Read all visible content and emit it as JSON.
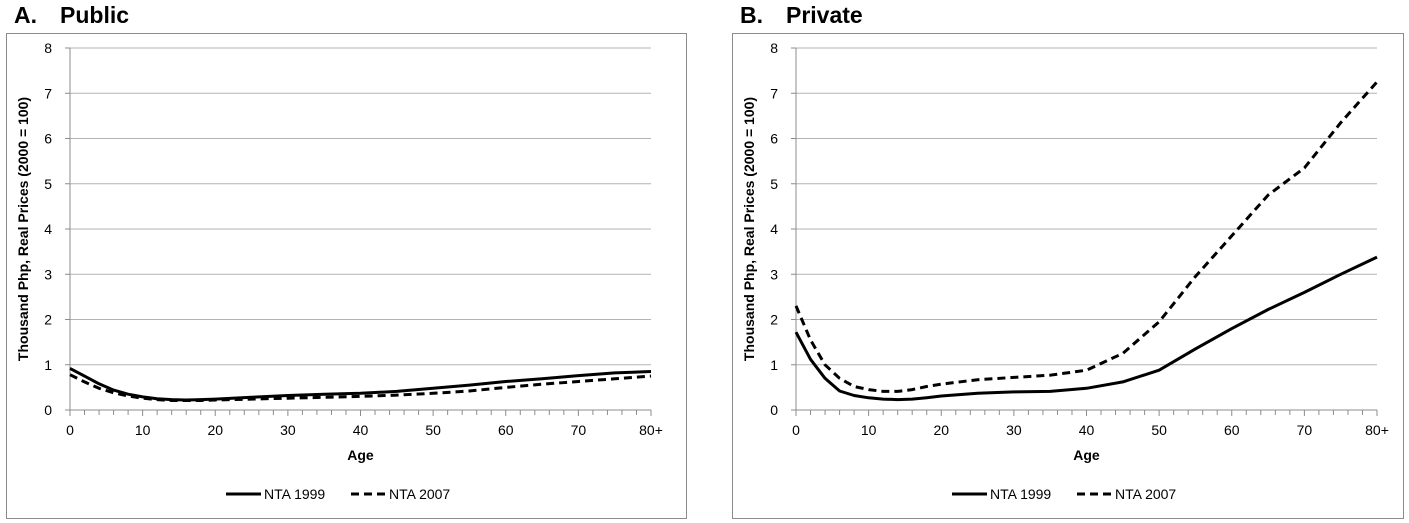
{
  "panels": [
    {
      "letter": "A.",
      "title": "Public"
    },
    {
      "letter": "B.",
      "title": "Private"
    }
  ],
  "chart_data": [
    {
      "type": "line",
      "title": "Public",
      "panel_label": "A.",
      "xlabel": "Age",
      "ylabel": "Thousand Php, Real Prices (2000 = 100)",
      "xlim": [
        0,
        80
      ],
      "ylim": [
        0,
        8
      ],
      "x_tick_labels": [
        "0",
        "10",
        "20",
        "30",
        "40",
        "50",
        "60",
        "70",
        "80+"
      ],
      "y_tick_labels": [
        "0",
        "1",
        "2",
        "3",
        "4",
        "5",
        "6",
        "7",
        "8"
      ],
      "grid": "horizontal",
      "legend_position": "bottom",
      "x": [
        0,
        2,
        4,
        6,
        8,
        10,
        12,
        14,
        16,
        18,
        20,
        25,
        30,
        35,
        40,
        45,
        50,
        55,
        60,
        65,
        70,
        75,
        80
      ],
      "series": [
        {
          "name": "NTA 1999",
          "style": "solid",
          "values": [
            0.92,
            0.75,
            0.58,
            0.44,
            0.35,
            0.29,
            0.25,
            0.23,
            0.22,
            0.23,
            0.24,
            0.28,
            0.32,
            0.35,
            0.37,
            0.41,
            0.48,
            0.55,
            0.63,
            0.69,
            0.76,
            0.82,
            0.85
          ]
        },
        {
          "name": "NTA 2007",
          "style": "dashed",
          "values": [
            0.78,
            0.62,
            0.48,
            0.38,
            0.31,
            0.26,
            0.23,
            0.21,
            0.21,
            0.21,
            0.22,
            0.24,
            0.26,
            0.28,
            0.3,
            0.33,
            0.37,
            0.42,
            0.5,
            0.57,
            0.63,
            0.69,
            0.75
          ]
        }
      ]
    },
    {
      "type": "line",
      "title": "Private",
      "panel_label": "B.",
      "xlabel": "Age",
      "ylabel": "Thousand Php, Real Prices (2000 = 100)",
      "xlim": [
        0,
        80
      ],
      "ylim": [
        0,
        8
      ],
      "x_tick_labels": [
        "0",
        "10",
        "20",
        "30",
        "40",
        "50",
        "60",
        "70",
        "80+"
      ],
      "y_tick_labels": [
        "0",
        "1",
        "2",
        "3",
        "4",
        "5",
        "6",
        "7",
        "8"
      ],
      "grid": "horizontal",
      "legend_position": "bottom",
      "x": [
        0,
        2,
        4,
        6,
        8,
        10,
        12,
        14,
        16,
        18,
        20,
        25,
        30,
        35,
        40,
        45,
        50,
        55,
        60,
        65,
        70,
        75,
        80
      ],
      "series": [
        {
          "name": "NTA 1999",
          "style": "solid",
          "values": [
            1.72,
            1.12,
            0.7,
            0.42,
            0.32,
            0.27,
            0.24,
            0.23,
            0.24,
            0.27,
            0.31,
            0.37,
            0.4,
            0.41,
            0.48,
            0.62,
            0.88,
            1.35,
            1.8,
            2.22,
            2.6,
            3.0,
            3.38
          ]
        },
        {
          "name": "NTA 2007",
          "style": "dashed",
          "values": [
            2.3,
            1.55,
            1.0,
            0.7,
            0.52,
            0.45,
            0.41,
            0.41,
            0.45,
            0.52,
            0.57,
            0.67,
            0.72,
            0.77,
            0.88,
            1.25,
            1.95,
            2.95,
            3.85,
            4.75,
            5.35,
            6.35,
            7.25
          ]
        }
      ]
    }
  ]
}
